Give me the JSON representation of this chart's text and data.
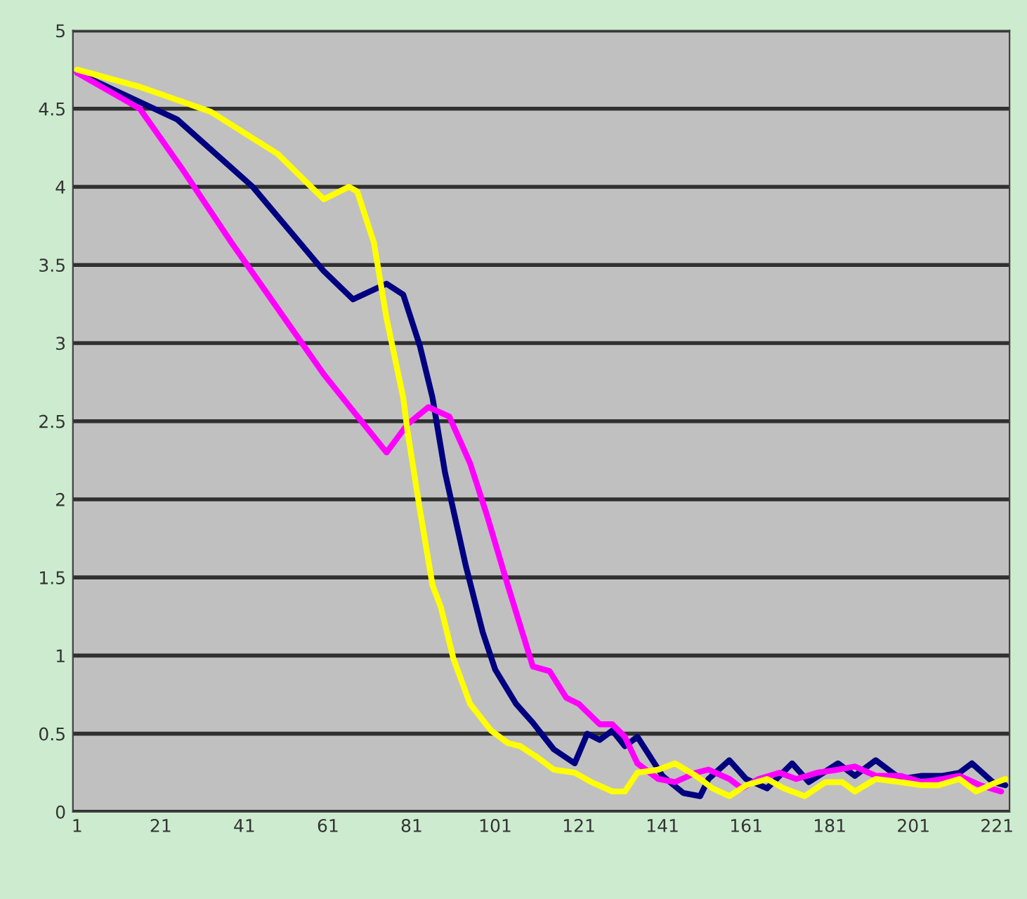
{
  "chart_data": {
    "type": "line",
    "xlim": [
      0,
      224
    ],
    "xticks": [
      1,
      21,
      41,
      61,
      81,
      101,
      121,
      141,
      161,
      181,
      201,
      221
    ],
    "ylim": [
      0,
      5
    ],
    "yticks": [
      0,
      0.5,
      1,
      1.5,
      2,
      2.5,
      3,
      3.5,
      4,
      4.5,
      5
    ],
    "grid": "y",
    "marker": "none",
    "line_style": "solid",
    "series": [
      {
        "color": "#000080",
        "x": [
          1,
          25,
          43,
          60,
          67,
          75,
          79,
          83,
          86,
          89,
          94,
          98,
          101,
          106,
          110,
          115,
          120,
          123,
          126,
          129,
          132,
          135,
          141,
          146,
          150,
          152,
          157,
          161,
          166,
          172,
          176,
          183,
          187,
          192,
          198,
          203,
          208,
          212,
          215,
          220,
          223
        ],
        "values": [
          4.73,
          4.43,
          4.0,
          3.46,
          3.28,
          3.38,
          3.31,
          2.98,
          2.65,
          2.17,
          1.57,
          1.15,
          0.91,
          0.69,
          0.57,
          0.4,
          0.31,
          0.5,
          0.46,
          0.52,
          0.42,
          0.48,
          0.23,
          0.12,
          0.1,
          0.21,
          0.33,
          0.21,
          0.15,
          0.31,
          0.19,
          0.31,
          0.23,
          0.33,
          0.21,
          0.23,
          0.23,
          0.25,
          0.31,
          0.19,
          0.17
        ]
      },
      {
        "color": "#ff00ff",
        "x": [
          1,
          16,
          26,
          38,
          49,
          60,
          75,
          80,
          85,
          90,
          95,
          99,
          104,
          110,
          114,
          118,
          121,
          126,
          129,
          132,
          135,
          140,
          144,
          149,
          152,
          157,
          160,
          164,
          169,
          173,
          178,
          183,
          187,
          192,
          198,
          203,
          208,
          212,
          217,
          222
        ],
        "values": [
          4.73,
          4.5,
          4.12,
          3.64,
          3.22,
          2.8,
          2.3,
          2.48,
          2.59,
          2.53,
          2.23,
          1.9,
          1.45,
          0.93,
          0.9,
          0.73,
          0.69,
          0.56,
          0.56,
          0.48,
          0.31,
          0.21,
          0.19,
          0.25,
          0.27,
          0.21,
          0.15,
          0.21,
          0.25,
          0.21,
          0.25,
          0.27,
          0.29,
          0.23,
          0.23,
          0.19,
          0.21,
          0.23,
          0.17,
          0.13
        ]
      },
      {
        "color": "#ffff00",
        "x": [
          1,
          16,
          33,
          49,
          60,
          66,
          68,
          72,
          75,
          79,
          80,
          83,
          86,
          88,
          91,
          95,
          100,
          104,
          107,
          111,
          115,
          120,
          124,
          129,
          132,
          135,
          140,
          144,
          149,
          153,
          157,
          161,
          166,
          170,
          175,
          180,
          184,
          187,
          192,
          198,
          203,
          207,
          212,
          216,
          221,
          223
        ],
        "values": [
          4.75,
          4.64,
          4.48,
          4.21,
          3.92,
          4.0,
          3.97,
          3.64,
          3.16,
          2.65,
          2.44,
          1.93,
          1.45,
          1.31,
          0.98,
          0.69,
          0.52,
          0.44,
          0.42,
          0.35,
          0.27,
          0.25,
          0.19,
          0.13,
          0.13,
          0.25,
          0.27,
          0.31,
          0.23,
          0.15,
          0.1,
          0.17,
          0.21,
          0.15,
          0.1,
          0.19,
          0.19,
          0.13,
          0.21,
          0.19,
          0.17,
          0.17,
          0.21,
          0.13,
          0.19,
          0.21
        ]
      }
    ]
  }
}
